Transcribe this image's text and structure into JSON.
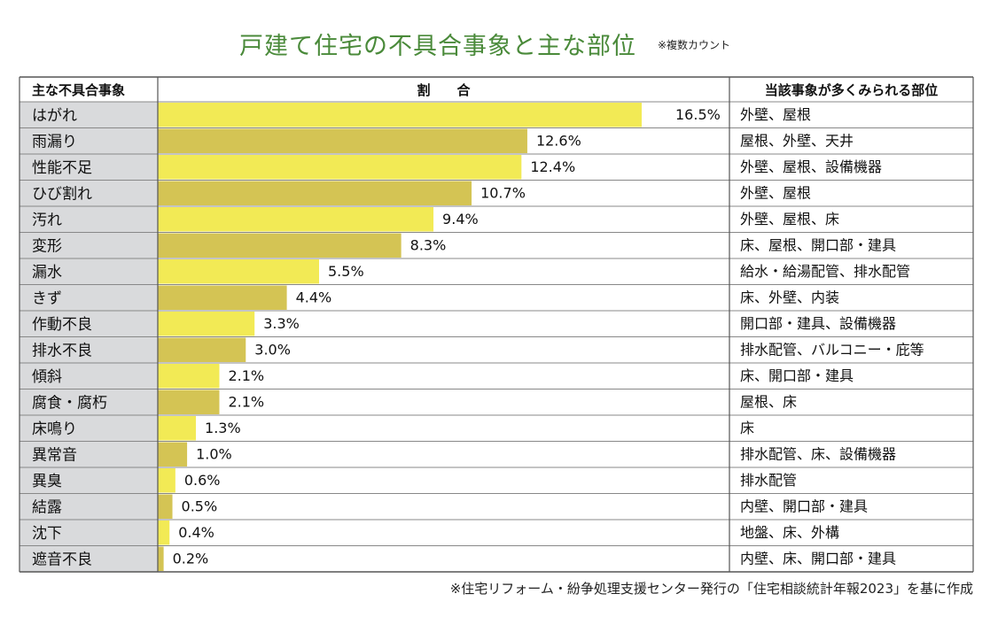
{
  "title": "戸建て住宅の不具合事象と主な部位",
  "title_note": "※複数カウント",
  "headers": {
    "category": "主な不具合事象",
    "ratio": "割　　合",
    "parts": "当該事象が多くみられる部位"
  },
  "footer": "※住宅リフォーム・紛争処理支援センター発行の「住宅相談統計年報2023」を基に作成",
  "colors": {
    "bar_light": "#f2ea55",
    "bar_dark": "#d4c454",
    "label_bg": "#d9dadc",
    "grid": "#888888"
  },
  "chart_data": {
    "type": "bar",
    "orientation": "horizontal",
    "title": "戸建て住宅の不具合事象と主な部位",
    "value_suffix": "%",
    "categories": [
      "はがれ",
      "雨漏り",
      "性能不足",
      "ひび割れ",
      "汚れ",
      "変形",
      "漏水",
      "きず",
      "作動不良",
      "排水不良",
      "傾斜",
      "腐食・腐朽",
      "床鳴り",
      "異常音",
      "異臭",
      "結露",
      "沈下",
      "遮音不良"
    ],
    "values": [
      16.5,
      12.6,
      12.4,
      10.7,
      9.4,
      8.3,
      5.5,
      4.4,
      3.3,
      3.0,
      2.1,
      2.1,
      1.3,
      1.0,
      0.6,
      0.5,
      0.4,
      0.2
    ],
    "labels": [
      "16.5%",
      "12.6%",
      "12.4%",
      "10.7%",
      "9.4%",
      "8.3%",
      "5.5%",
      "4.4%",
      "3.3%",
      "3.0%",
      "2.1%",
      "2.1%",
      "1.3%",
      "1.0%",
      "0.6%",
      "0.5%",
      "0.4%",
      "0.2%"
    ],
    "parts": [
      "外壁、屋根",
      "屋根、外壁、天井",
      "外壁、屋根、設備機器",
      "外壁、屋根",
      "外壁、屋根、床",
      "床、屋根、開口部・建具",
      "給水・給湯配管、排水配管",
      "床、外壁、内装",
      "開口部・建具、設備機器",
      "排水配管、バルコニー・庇等",
      "床、開口部・建具",
      "屋根、床",
      "床",
      "排水配管、床、設備機器",
      "排水配管",
      "内壁、開口部・建具",
      "地盤、床、外構",
      "内壁、床、開口部・建具"
    ],
    "xlim": [
      0,
      16.5
    ]
  }
}
